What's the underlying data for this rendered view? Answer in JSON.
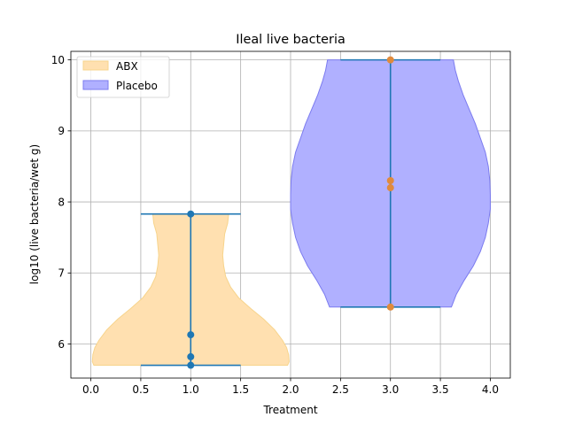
{
  "chart_data": {
    "type": "violin",
    "title": "Ileal live bacteria",
    "xlabel": "Treatment",
    "ylabel": "log10 (live bacteria/wet g)",
    "xlim": [
      -0.2,
      4.2
    ],
    "ylim": [
      5.52,
      10.12
    ],
    "xticks": [
      0.0,
      0.5,
      1.0,
      1.5,
      2.0,
      2.5,
      3.0,
      3.5,
      4.0
    ],
    "xtick_labels": [
      "0.0",
      "0.5",
      "1.0",
      "1.5",
      "2.0",
      "2.5",
      "3.0",
      "3.5",
      "4.0"
    ],
    "yticks": [
      6,
      7,
      8,
      9,
      10
    ],
    "ytick_labels": [
      "6",
      "7",
      "8",
      "9",
      "10"
    ],
    "grid": true,
    "legend_position": "top-left",
    "colors": {
      "abx_fill": "#ffe0b0",
      "abx_edge": "#f7d48c",
      "placebo_fill": "#b0b0ff",
      "placebo_edge": "#7b7bef",
      "whisker": "#1f77b4",
      "abx_points": "#1f77b4",
      "placebo_points": "#e08a3c"
    },
    "series": [
      {
        "name": "ABX",
        "position": 1.0,
        "min": 5.7,
        "max": 7.83,
        "points": [
          5.7,
          5.82,
          6.13,
          7.83
        ],
        "density": [
          [
            5.7,
            0.97
          ],
          [
            5.75,
            0.985
          ],
          [
            5.85,
            0.98
          ],
          [
            5.95,
            0.96
          ],
          [
            6.05,
            0.92
          ],
          [
            6.2,
            0.84
          ],
          [
            6.35,
            0.73
          ],
          [
            6.5,
            0.6
          ],
          [
            6.65,
            0.48
          ],
          [
            6.8,
            0.4
          ],
          [
            6.95,
            0.35
          ],
          [
            7.1,
            0.33
          ],
          [
            7.25,
            0.32
          ],
          [
            7.4,
            0.33
          ],
          [
            7.55,
            0.34
          ],
          [
            7.7,
            0.37
          ],
          [
            7.83,
            0.38
          ]
        ]
      },
      {
        "name": "Placebo",
        "position": 3.0,
        "min": 6.52,
        "max": 10.0,
        "points": [
          6.52,
          8.2,
          8.3,
          10.0
        ],
        "density": [
          [
            6.52,
            0.61
          ],
          [
            6.7,
            0.66
          ],
          [
            6.9,
            0.74
          ],
          [
            7.1,
            0.83
          ],
          [
            7.3,
            0.9
          ],
          [
            7.5,
            0.95
          ],
          [
            7.7,
            0.98
          ],
          [
            7.9,
            1.0
          ],
          [
            8.1,
            1.0
          ],
          [
            8.3,
            0.995
          ],
          [
            8.5,
            0.98
          ],
          [
            8.7,
            0.95
          ],
          [
            8.9,
            0.9
          ],
          [
            9.1,
            0.85
          ],
          [
            9.3,
            0.79
          ],
          [
            9.5,
            0.73
          ],
          [
            9.7,
            0.68
          ],
          [
            9.85,
            0.65
          ],
          [
            10.0,
            0.63
          ]
        ]
      }
    ]
  }
}
